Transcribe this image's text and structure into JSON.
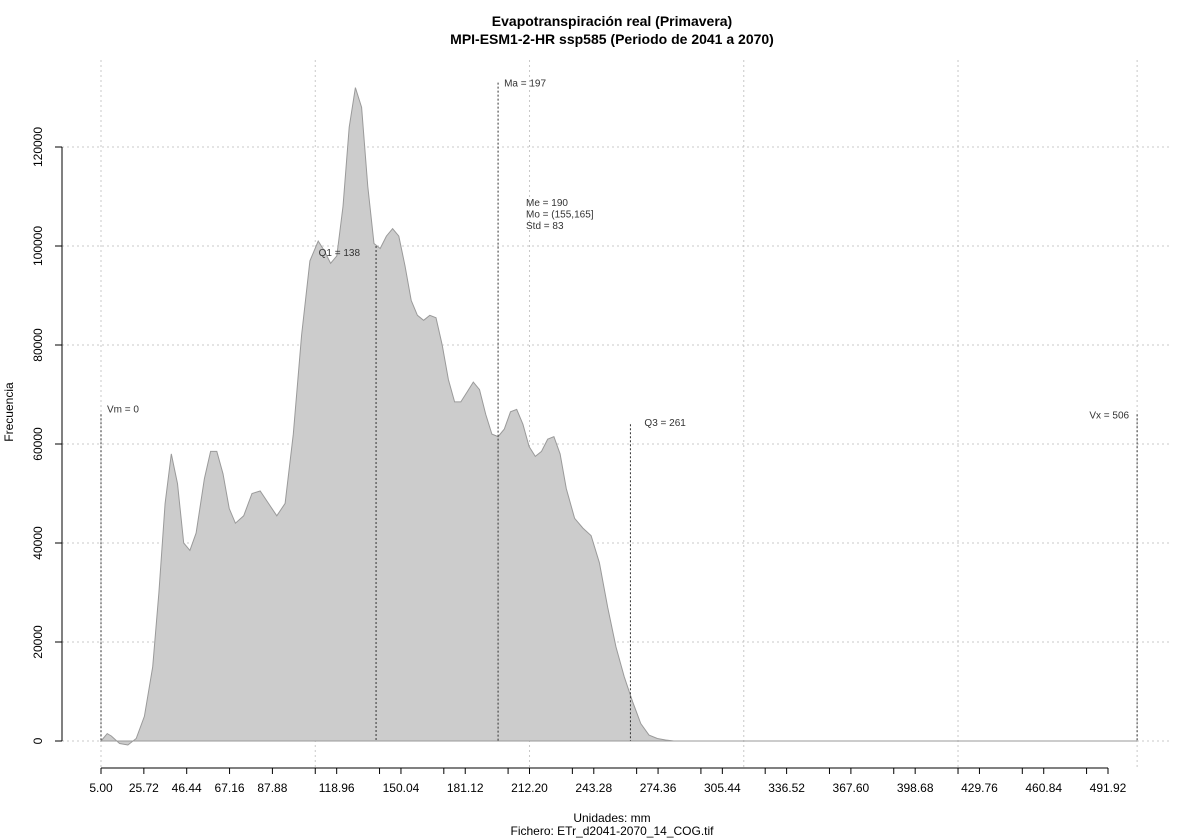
{
  "chart_data": {
    "type": "area",
    "title": "Evapotranspiración real (Primavera)",
    "subtitle": "MPI-ESM1-2-HR ssp585 (Periodo de 2041 a 2070)",
    "xlabel": "Unidades: mm",
    "xlabel2": "Fichero: ETr_d2041-2070_14_COG.tif",
    "ylabel": "Frecuencia",
    "xlim": [
      5,
      506
    ],
    "ylim": [
      0,
      130000
    ],
    "x_ticks": [
      5,
      25.72,
      46.44,
      67.16,
      87.88,
      108.6,
      118.96,
      139.68,
      150.04,
      170.76,
      181.12,
      201.84,
      212.2,
      232.92,
      243.28,
      264,
      274.36,
      295.08,
      305.44,
      326.16,
      336.52,
      357.24,
      367.6,
      388.32,
      398.68,
      419.4,
      429.76,
      450.48,
      460.84,
      481.56,
      491.92
    ],
    "x_tick_labels": [
      "5.00",
      "25.72",
      "46.44",
      "67.16",
      "87.88",
      "118.96",
      "150.04",
      "181.12",
      "212.20",
      "243.28",
      "274.36",
      "305.44",
      "336.52",
      "367.60",
      "398.68",
      "429.76",
      "460.84",
      "491.92"
    ],
    "x_tick_label_values": [
      5,
      25.72,
      46.44,
      67.16,
      87.88,
      118.96,
      150.04,
      181.12,
      212.2,
      243.28,
      274.36,
      305.44,
      336.52,
      367.6,
      398.68,
      429.76,
      460.84,
      491.92
    ],
    "y_ticks": [
      0,
      20000,
      40000,
      60000,
      80000,
      100000,
      120000
    ],
    "y_tick_labels": [
      "0",
      "20000",
      "40000",
      "60000",
      "80000",
      "100000",
      "120000"
    ],
    "grid": true,
    "grid_x": [
      5,
      108.6,
      212.2,
      315.8,
      419.4,
      506
    ],
    "series": [
      {
        "color": "#cccccc",
        "x": [
          5,
          8,
          10,
          14,
          18,
          22,
          26,
          30,
          33,
          36,
          39,
          42,
          45,
          48,
          51,
          55,
          58,
          61,
          64,
          67,
          70,
          74,
          78,
          82,
          86,
          90,
          94,
          98,
          102,
          106,
          110,
          113,
          116,
          119,
          122,
          125,
          128,
          131,
          134,
          137,
          140,
          143,
          146,
          149,
          152,
          155,
          158,
          161,
          164,
          167,
          170,
          173,
          176,
          179,
          182,
          185,
          188,
          191,
          194,
          197,
          200,
          203,
          206,
          209,
          212,
          215,
          218,
          221,
          224,
          227,
          230,
          234,
          238,
          242,
          246,
          250,
          254,
          258,
          262,
          266,
          270,
          274,
          278,
          282,
          286,
          290,
          294,
          298,
          302,
          306,
          310,
          314,
          318,
          322,
          326,
          330,
          334,
          338,
          342,
          346,
          350,
          354,
          358,
          362,
          366,
          370,
          374,
          378,
          382,
          386,
          390,
          394,
          398,
          402,
          406,
          410,
          420,
          440,
          460,
          480,
          500,
          506
        ],
        "y": [
          0,
          1500,
          1000,
          -500,
          -800,
          500,
          5000,
          15000,
          30000,
          48000,
          58000,
          52000,
          40000,
          38500,
          42000,
          53000,
          58500,
          58500,
          54000,
          47000,
          44000,
          45500,
          50000,
          50500,
          48000,
          45500,
          48000,
          62000,
          82000,
          97000,
          101000,
          99000,
          96500,
          98000,
          108000,
          124000,
          132000,
          128000,
          112000,
          100500,
          99500,
          102000,
          103500,
          102000,
          96000,
          89000,
          86000,
          85000,
          86000,
          85500,
          80000,
          73000,
          68500,
          68500,
          70500,
          72500,
          71000,
          66000,
          62000,
          61500,
          63000,
          66500,
          67000,
          64000,
          59500,
          57500,
          58500,
          61000,
          61500,
          58000,
          51000,
          45000,
          43000,
          41500,
          36000,
          27000,
          19000,
          13000,
          8000,
          3500,
          1200,
          500,
          200,
          0,
          0,
          0,
          0,
          0,
          0,
          0,
          0,
          0,
          0,
          0,
          0,
          0,
          0,
          0,
          0,
          0,
          0,
          0,
          0,
          0,
          0,
          0,
          0,
          0,
          0,
          0,
          0,
          0,
          0,
          0,
          0,
          0,
          0,
          0,
          0,
          0,
          0,
          0
        ]
      }
    ],
    "markers": [
      {
        "label": "Vm = 0",
        "x": 5,
        "top": 66000
      },
      {
        "label": "Q1 = 138",
        "x": 138,
        "top": 100000
      },
      {
        "label": "Ma = 197",
        "x": 197,
        "top": 133000
      },
      {
        "label": "Q3 = 261",
        "x": 261,
        "top": 64000
      },
      {
        "label": "Vx = 506",
        "x": 506,
        "top": 66000
      }
    ],
    "stats": [
      "Me = 190",
      "Mo = (155,165]",
      "Std = 83"
    ]
  }
}
